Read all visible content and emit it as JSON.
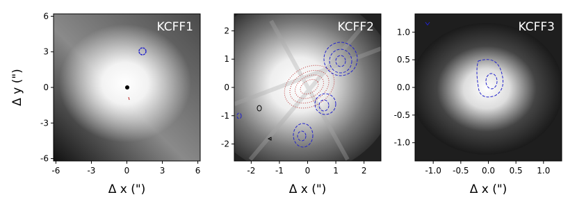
{
  "chart_data": [
    {
      "type": "image",
      "title": "KCFF1",
      "xlabel": "Δ x (\")",
      "ylabel": "Δ y (\")",
      "xlim": [
        -6.2,
        6.2
      ],
      "ylim": [
        -6.2,
        6.2
      ],
      "xticks": [
        -6,
        -3,
        0,
        3,
        6
      ],
      "yticks": [
        -6,
        -3,
        0,
        3,
        6
      ]
    },
    {
      "type": "image",
      "title": "KCFF2",
      "xlabel": "Δ x (\")",
      "xlim": [
        -2.6,
        2.6
      ],
      "ylim": [
        -2.6,
        2.6
      ],
      "xticks": [
        -2,
        -1,
        0,
        1,
        2
      ],
      "yticks": [
        -2,
        -1,
        0,
        1,
        2
      ]
    },
    {
      "type": "image",
      "title": "KCFF3",
      "xlabel": "Δ x (\")",
      "xlim": [
        -1.33,
        1.33
      ],
      "ylim": [
        -1.33,
        1.33
      ],
      "xticks": [
        {
          "value": -1,
          "label": "-1.0"
        },
        -0.5,
        {
          "value": 0,
          "label": "0.0"
        },
        0.5,
        {
          "value": 1,
          "label": "1.0"
        }
      ],
      "yticks": [
        {
          "value": -1,
          "label": "-1.0"
        },
        -0.5,
        {
          "value": 0,
          "label": "0.0"
        },
        0.5,
        {
          "value": 1,
          "label": "1.0"
        }
      ]
    }
  ]
}
